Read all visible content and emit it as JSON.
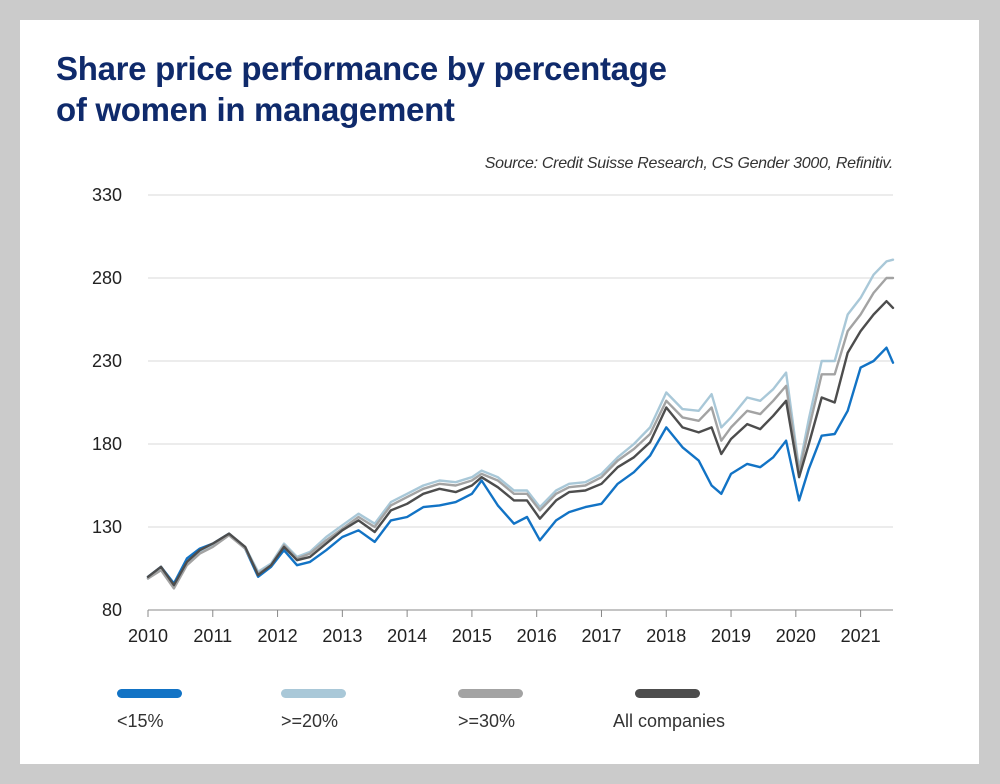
{
  "title": {
    "line1": "Share price performance by percentage",
    "line2": "of women in management"
  },
  "source": "Source: Credit Suisse Research, CS Gender 3000, Refinitiv.",
  "colors": {
    "lt15": "#1273c5",
    "ge20": "#a9c8d8",
    "ge30": "#a3a3a3",
    "all": "#4d4d4d",
    "grid": "#d9d9d9",
    "title": "#0f2a6b"
  },
  "legend": [
    {
      "label": "<15%",
      "color": "#1273c5"
    },
    {
      "label": ">=20%",
      "color": "#a9c8d8"
    },
    {
      "label": ">=30%",
      "color": "#a3a3a3"
    },
    {
      "label": "All companies",
      "color": "#4d4d4d"
    }
  ],
  "chart_data": {
    "type": "line",
    "title": "Share price performance by percentage of women in management",
    "xlabel": "",
    "ylabel": "",
    "xlim": [
      2010,
      2021.5
    ],
    "ylim": [
      80,
      330
    ],
    "y_ticks": [
      "80",
      "130",
      "180",
      "230",
      "280",
      "330"
    ],
    "x_ticks": [
      "2010",
      "2011",
      "2012",
      "2013",
      "2014",
      "2015",
      "2016",
      "2017",
      "2018",
      "2019",
      "2020",
      "2021"
    ],
    "grid": true,
    "legend_position": "bottom",
    "series": [
      {
        "name": "<15%",
        "color": "#1273c5",
        "x": [
          2010,
          2010.2,
          2010.4,
          2010.6,
          2010.8,
          2011,
          2011.25,
          2011.5,
          2011.7,
          2011.9,
          2012.1,
          2012.3,
          2012.5,
          2012.75,
          2013,
          2013.25,
          2013.5,
          2013.75,
          2014,
          2014.25,
          2014.5,
          2014.75,
          2015,
          2015.15,
          2015.4,
          2015.65,
          2015.85,
          2016.05,
          2016.3,
          2016.5,
          2016.75,
          2017,
          2017.25,
          2017.5,
          2017.75,
          2018,
          2018.25,
          2018.5,
          2018.7,
          2018.85,
          2019,
          2019.25,
          2019.45,
          2019.65,
          2019.85,
          2020.05,
          2020.2,
          2020.4,
          2020.6,
          2020.8,
          2021,
          2021.2,
          2021.4,
          2021.5
        ],
        "values": [
          100,
          106,
          96,
          111,
          117,
          120,
          126,
          117,
          100,
          106,
          116,
          107,
          109,
          116,
          124,
          128,
          121,
          134,
          136,
          142,
          143,
          145,
          150,
          158,
          143,
          132,
          136,
          122,
          134,
          139,
          142,
          144,
          156,
          163,
          173,
          190,
          178,
          170,
          155,
          150,
          162,
          168,
          166,
          172,
          182,
          146,
          165,
          185,
          186,
          200,
          226,
          230,
          238,
          229
        ]
      },
      {
        "name": ">=20%",
        "color": "#a9c8d8",
        "x": [
          2010,
          2010.2,
          2010.4,
          2010.6,
          2010.8,
          2011,
          2011.25,
          2011.5,
          2011.7,
          2011.9,
          2012.1,
          2012.3,
          2012.5,
          2012.75,
          2013,
          2013.25,
          2013.5,
          2013.75,
          2014,
          2014.25,
          2014.5,
          2014.75,
          2015,
          2015.15,
          2015.4,
          2015.65,
          2015.85,
          2016.05,
          2016.3,
          2016.5,
          2016.75,
          2017,
          2017.25,
          2017.5,
          2017.75,
          2018,
          2018.25,
          2018.5,
          2018.7,
          2018.85,
          2019,
          2019.25,
          2019.45,
          2019.65,
          2019.85,
          2020.05,
          2020.2,
          2020.4,
          2020.6,
          2020.8,
          2021,
          2021.2,
          2021.4,
          2021.5
        ],
        "values": [
          99,
          105,
          94,
          108,
          115,
          119,
          126,
          118,
          103,
          108,
          120,
          112,
          115,
          124,
          131,
          138,
          132,
          145,
          150,
          155,
          158,
          157,
          160,
          164,
          160,
          152,
          152,
          142,
          152,
          156,
          157,
          162,
          172,
          180,
          190,
          211,
          201,
          200,
          210,
          190,
          196,
          208,
          206,
          213,
          223,
          165,
          195,
          230,
          230,
          258,
          268,
          282,
          290,
          291
        ]
      },
      {
        "name": ">=30%",
        "color": "#a3a3a3",
        "x": [
          2010,
          2010.2,
          2010.4,
          2010.6,
          2010.8,
          2011,
          2011.25,
          2011.5,
          2011.7,
          2011.9,
          2012.1,
          2012.3,
          2012.5,
          2012.75,
          2013,
          2013.25,
          2013.5,
          2013.75,
          2014,
          2014.25,
          2014.5,
          2014.75,
          2015,
          2015.15,
          2015.4,
          2015.65,
          2015.85,
          2016.05,
          2016.3,
          2016.5,
          2016.75,
          2017,
          2017.25,
          2017.5,
          2017.75,
          2018,
          2018.25,
          2018.5,
          2018.7,
          2018.85,
          2019,
          2019.25,
          2019.45,
          2019.65,
          2019.85,
          2020.05,
          2020.2,
          2020.4,
          2020.6,
          2020.8,
          2021,
          2021.2,
          2021.4,
          2021.5
        ],
        "values": [
          99,
          104,
          93,
          107,
          114,
          118,
          125,
          117,
          102,
          107,
          119,
          111,
          114,
          122,
          129,
          136,
          130,
          143,
          148,
          153,
          156,
          155,
          158,
          162,
          158,
          150,
          150,
          140,
          150,
          154,
          155,
          160,
          170,
          177,
          186,
          206,
          196,
          194,
          202,
          182,
          190,
          200,
          198,
          206,
          215,
          163,
          189,
          222,
          222,
          248,
          258,
          271,
          280,
          280
        ]
      },
      {
        "name": "All companies",
        "color": "#4d4d4d",
        "x": [
          2010,
          2010.2,
          2010.4,
          2010.6,
          2010.8,
          2011,
          2011.25,
          2011.5,
          2011.7,
          2011.9,
          2012.1,
          2012.3,
          2012.5,
          2012.75,
          2013,
          2013.25,
          2013.5,
          2013.75,
          2014,
          2014.25,
          2014.5,
          2014.75,
          2015,
          2015.15,
          2015.4,
          2015.65,
          2015.85,
          2016.05,
          2016.3,
          2016.5,
          2016.75,
          2017,
          2017.25,
          2017.5,
          2017.75,
          2018,
          2018.25,
          2018.5,
          2018.7,
          2018.85,
          2019,
          2019.25,
          2019.45,
          2019.65,
          2019.85,
          2020.05,
          2020.2,
          2020.4,
          2020.6,
          2020.8,
          2021,
          2021.2,
          2021.4,
          2021.5
        ],
        "values": [
          100,
          106,
          95,
          109,
          116,
          120,
          126,
          118,
          101,
          107,
          118,
          110,
          112,
          120,
          128,
          134,
          127,
          140,
          144,
          150,
          153,
          151,
          155,
          160,
          154,
          146,
          146,
          135,
          146,
          151,
          152,
          156,
          166,
          172,
          181,
          202,
          190,
          187,
          190,
          174,
          183,
          192,
          189,
          197,
          206,
          160,
          180,
          208,
          205,
          235,
          248,
          258,
          266,
          262
        ]
      }
    ]
  }
}
